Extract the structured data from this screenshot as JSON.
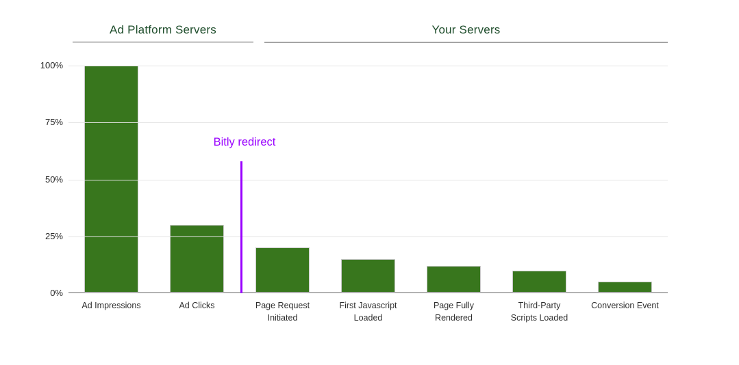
{
  "chart_data": {
    "type": "bar",
    "title": "",
    "xlabel": "",
    "ylabel": "",
    "categories": [
      "Ad Impressions",
      "Ad Clicks",
      "Page Request Initiated",
      "First Javascript Loaded",
      "Page Fully Rendered",
      "Third-Party Scripts Loaded",
      "Conversion Event"
    ],
    "category_label_lines": [
      [
        "Ad Impressions"
      ],
      [
        "Ad Clicks"
      ],
      [
        "Page Request",
        "Initiated"
      ],
      [
        "First Javascript",
        "Loaded"
      ],
      [
        "Page Fully",
        "Rendered"
      ],
      [
        "Third-Party",
        "Scripts Loaded"
      ],
      [
        "Conversion Event"
      ]
    ],
    "values": [
      100,
      30,
      20,
      15,
      12,
      10,
      5
    ],
    "unit": "%",
    "ylim": [
      0,
      100
    ],
    "yticks": [
      0,
      25,
      50,
      75,
      100
    ],
    "ytick_labels": [
      "0%",
      "25%",
      "50%",
      "75%",
      "100%"
    ],
    "grid": true,
    "legend": "none",
    "bar_color": "#38761d",
    "groups": [
      {
        "label": "Ad Platform Servers",
        "span": [
          0,
          1
        ]
      },
      {
        "label": "Your Servers",
        "span": [
          2,
          6
        ]
      }
    ],
    "annotation": {
      "label": "Bitly redirect",
      "boundary_index": 2,
      "line_top_percent": 58,
      "color": "#9900ff"
    }
  },
  "colors": {
    "bar": "#38761d",
    "bar_border": "#c9c9c9",
    "heading_text": "#1e4d2b",
    "annotation": "#9900ff",
    "gridline": "#e4e4e4",
    "baseline": "#b2b2b2",
    "axis_text": "#262626"
  }
}
